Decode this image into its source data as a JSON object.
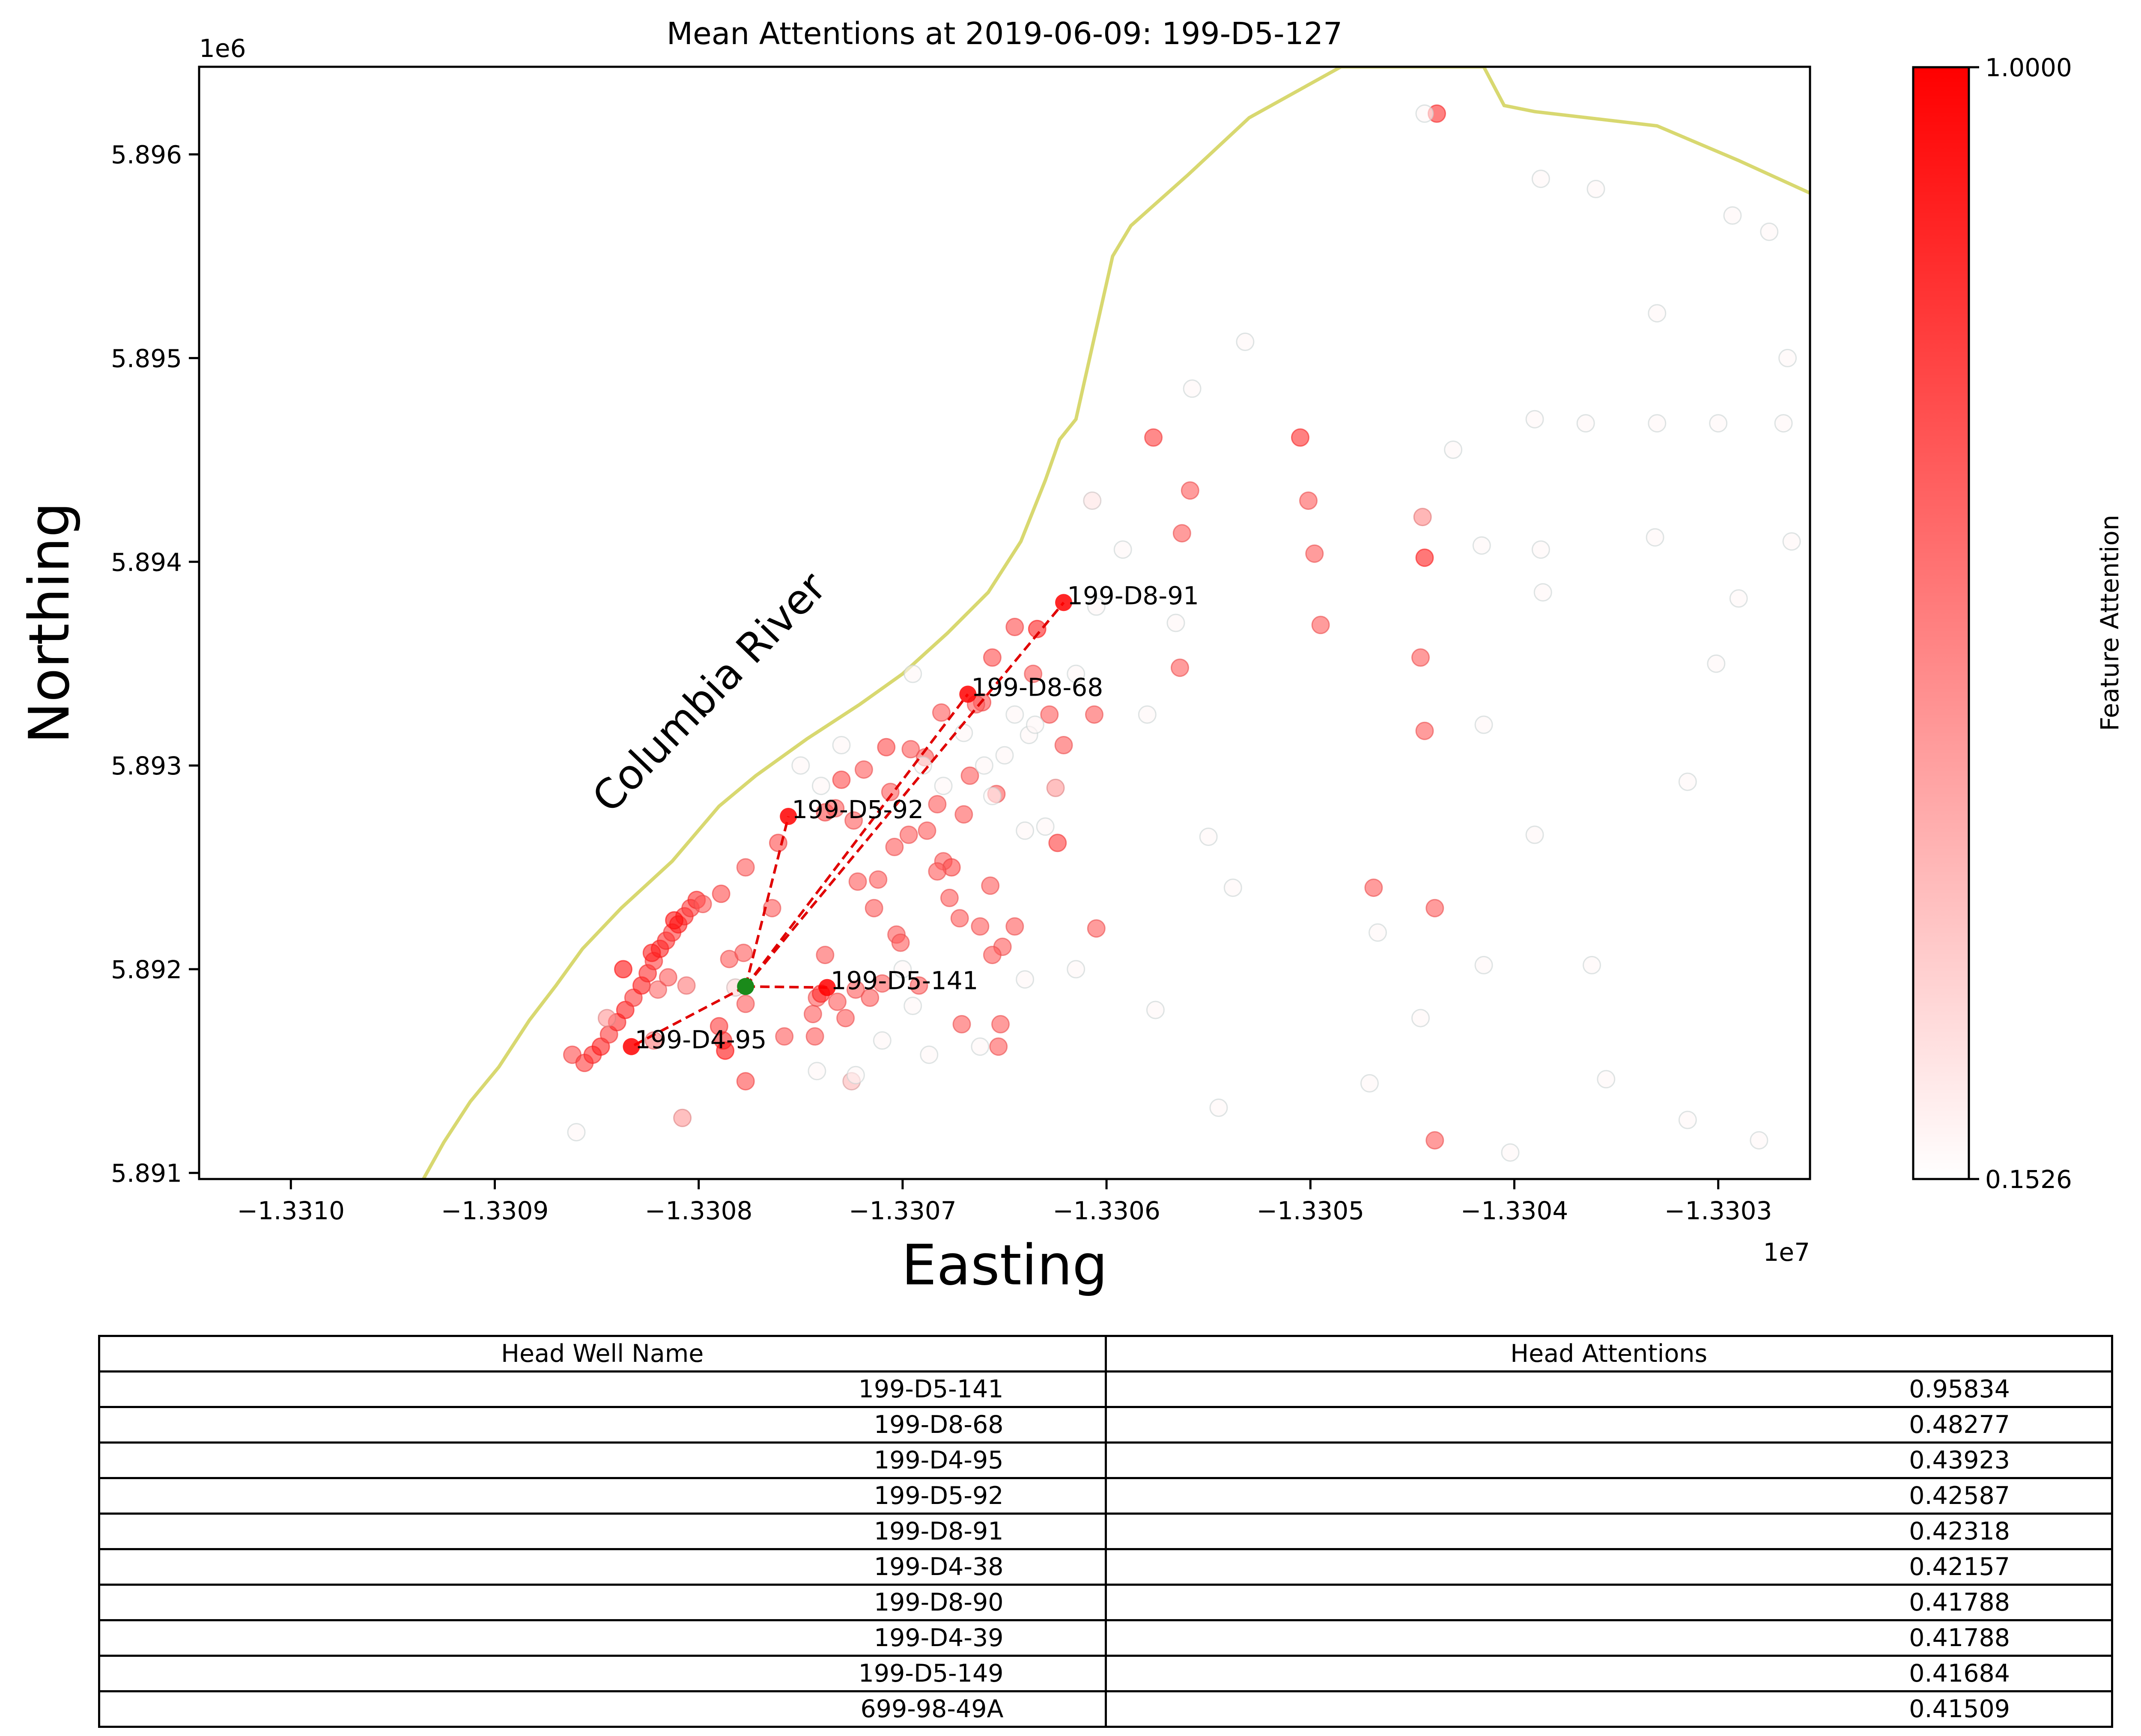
{
  "chart_data": {
    "type": "scatter",
    "title": "Mean Attentions at 2019-06-09: 199-D5-127",
    "xlabel": "Easting",
    "ylabel": "Northing",
    "x_offset_label": "1e7",
    "y_offset_label": "1e6",
    "xlim": [
      -13310450,
      -13302550
    ],
    "ylim": [
      5.89097,
      5.89643
    ],
    "xticks": [
      {
        "value": -13310000,
        "label": "−1.3310"
      },
      {
        "value": -13309000,
        "label": "−1.3309"
      },
      {
        "value": -13308000,
        "label": "−1.3308"
      },
      {
        "value": -13307000,
        "label": "−1.3307"
      },
      {
        "value": -13306000,
        "label": "−1.3306"
      },
      {
        "value": -13305000,
        "label": "−1.3305"
      },
      {
        "value": -13304000,
        "label": "−1.3304"
      },
      {
        "value": -13303000,
        "label": "−1.3303"
      }
    ],
    "yticks": [
      {
        "value": 5.891,
        "label": "5.891"
      },
      {
        "value": 5.892,
        "label": "5.892"
      },
      {
        "value": 5.893,
        "label": "5.893"
      },
      {
        "value": 5.894,
        "label": "5.894"
      },
      {
        "value": 5.895,
        "label": "5.895"
      },
      {
        "value": 5.896,
        "label": "5.896"
      }
    ],
    "river": {
      "label": "Columbia River",
      "color": "#d8d870",
      "points": [
        [
          -13309350,
          5.89097
        ],
        [
          -13309250,
          5.89115
        ],
        [
          -13309120,
          5.89135
        ],
        [
          -13308980,
          5.89152
        ],
        [
          -13308830,
          5.89175
        ],
        [
          -13308700,
          5.89192
        ],
        [
          -13308570,
          5.8921
        ],
        [
          -13308380,
          5.8923
        ],
        [
          -13308130,
          5.89253
        ],
        [
          -13307900,
          5.8928
        ],
        [
          -13307720,
          5.89295
        ],
        [
          -13307470,
          5.89313
        ],
        [
          -13307210,
          5.8933
        ],
        [
          -13307000,
          5.89345
        ],
        [
          -13306780,
          5.89365
        ],
        [
          -13306580,
          5.89385
        ],
        [
          -13306420,
          5.8941
        ],
        [
          -13306300,
          5.8944
        ],
        [
          -13306230,
          5.8946
        ],
        [
          -13306150,
          5.8947
        ],
        [
          -13306060,
          5.8951
        ],
        [
          -13305970,
          5.8955
        ],
        [
          -13305880,
          5.89565
        ],
        [
          -13305600,
          5.8959
        ],
        [
          -13305300,
          5.89618
        ],
        [
          -13304850,
          5.89643
        ],
        [
          -13304150,
          5.89643
        ],
        [
          -13304050,
          5.89624
        ],
        [
          -13303900,
          5.89621
        ],
        [
          -13303300,
          5.89614
        ],
        [
          -13302900,
          5.89597
        ],
        [
          -13302550,
          5.89581
        ]
      ]
    },
    "head_well": {
      "name": "199-D5-127",
      "x": -13307770,
      "y": 5.891915,
      "color": "#1a8a1a"
    },
    "attention_links": [
      {
        "name": "199-D5-141",
        "x": -13307370,
        "y": 5.89191
      },
      {
        "name": "199-D8-68",
        "x": -13306680,
        "y": 5.89335
      },
      {
        "name": "199-D4-95",
        "x": -13308330,
        "y": 5.89162
      },
      {
        "name": "199-D5-92",
        "x": -13307560,
        "y": 5.89275
      },
      {
        "name": "199-D8-91",
        "x": -13306210,
        "y": 5.8938
      }
    ],
    "wells": [
      {
        "x": -13308620,
        "y": 5.89158,
        "v": 0.75
      },
      {
        "x": -13308560,
        "y": 5.89154,
        "v": 0.8
      },
      {
        "x": -13308520,
        "y": 5.89158,
        "v": 0.85
      },
      {
        "x": -13308480,
        "y": 5.89162,
        "v": 0.9
      },
      {
        "x": -13308440,
        "y": 5.89168,
        "v": 0.8
      },
      {
        "x": -13308400,
        "y": 5.89174,
        "v": 0.85
      },
      {
        "x": -13308360,
        "y": 5.8918,
        "v": 0.9
      },
      {
        "x": -13308320,
        "y": 5.89186,
        "v": 0.8
      },
      {
        "x": -13308280,
        "y": 5.89192,
        "v": 0.9
      },
      {
        "x": -13308250,
        "y": 5.89198,
        "v": 0.85
      },
      {
        "x": -13308220,
        "y": 5.89204,
        "v": 0.8
      },
      {
        "x": -13308190,
        "y": 5.8921,
        "v": 0.9
      },
      {
        "x": -13308160,
        "y": 5.89214,
        "v": 0.85
      },
      {
        "x": -13308130,
        "y": 5.89218,
        "v": 0.8
      },
      {
        "x": -13308100,
        "y": 5.89222,
        "v": 0.9
      },
      {
        "x": -13308070,
        "y": 5.89226,
        "v": 0.85
      },
      {
        "x": -13308040,
        "y": 5.8923,
        "v": 0.8
      },
      {
        "x": -13308010,
        "y": 5.89234,
        "v": 0.85
      },
      {
        "x": -13307980,
        "y": 5.89232,
        "v": 0.7
      },
      {
        "x": -13308370,
        "y": 5.892,
        "v": 0.95
      },
      {
        "x": -13308230,
        "y": 5.89208,
        "v": 0.9
      },
      {
        "x": -13308120,
        "y": 5.89224,
        "v": 0.95
      },
      {
        "x": -13308200,
        "y": 5.8919,
        "v": 0.65
      },
      {
        "x": -13308150,
        "y": 5.89196,
        "v": 0.7
      },
      {
        "x": -13308060,
        "y": 5.89192,
        "v": 0.6
      },
      {
        "x": -13308450,
        "y": 5.89176,
        "v": 0.5
      },
      {
        "x": -13307890,
        "y": 5.89237,
        "v": 0.75
      },
      {
        "x": -13307850,
        "y": 5.89205,
        "v": 0.7
      },
      {
        "x": -13307900,
        "y": 5.89172,
        "v": 0.8
      },
      {
        "x": -13307880,
        "y": 5.89165,
        "v": 0.85
      },
      {
        "x": -13307870,
        "y": 5.8916,
        "v": 0.95
      },
      {
        "x": -13307770,
        "y": 5.89183,
        "v": 0.7
      },
      {
        "x": -13307770,
        "y": 5.89145,
        "v": 0.75
      },
      {
        "x": -13307780,
        "y": 5.89208,
        "v": 0.7
      },
      {
        "x": -13307770,
        "y": 5.8925,
        "v": 0.7
      },
      {
        "x": -13307640,
        "y": 5.8923,
        "v": 0.7
      },
      {
        "x": -13307610,
        "y": 5.89262,
        "v": 0.75
      },
      {
        "x": -13307820,
        "y": 5.89191,
        "v": 0.3
      },
      {
        "x": -13307380,
        "y": 5.89277,
        "v": 0.75
      },
      {
        "x": -13307300,
        "y": 5.89293,
        "v": 0.75
      },
      {
        "x": -13307190,
        "y": 5.89298,
        "v": 0.7
      },
      {
        "x": -13307080,
        "y": 5.89309,
        "v": 0.75
      },
      {
        "x": -13306960,
        "y": 5.89308,
        "v": 0.7
      },
      {
        "x": -13306890,
        "y": 5.89304,
        "v": 0.7
      },
      {
        "x": -13306810,
        "y": 5.89326,
        "v": 0.7
      },
      {
        "x": -13306560,
        "y": 5.89353,
        "v": 0.75
      },
      {
        "x": -13306450,
        "y": 5.89368,
        "v": 0.75
      },
      {
        "x": -13306340,
        "y": 5.89367,
        "v": 0.9
      },
      {
        "x": -13306610,
        "y": 5.89331,
        "v": 0.75
      },
      {
        "x": -13306640,
        "y": 5.8933,
        "v": 0.7
      },
      {
        "x": -13306360,
        "y": 5.89345,
        "v": 0.7
      },
      {
        "x": -13306280,
        "y": 5.89325,
        "v": 0.7
      },
      {
        "x": -13306060,
        "y": 5.89325,
        "v": 0.7
      },
      {
        "x": -13306210,
        "y": 5.8931,
        "v": 0.7
      },
      {
        "x": -13306250,
        "y": 5.89289,
        "v": 0.5
      },
      {
        "x": -13306240,
        "y": 5.89262,
        "v": 0.8
      },
      {
        "x": -13306050,
        "y": 5.8922,
        "v": 0.7
      },
      {
        "x": -13306540,
        "y": 5.89286,
        "v": 0.7
      },
      {
        "x": -13306670,
        "y": 5.89295,
        "v": 0.7
      },
      {
        "x": -13306700,
        "y": 5.89276,
        "v": 0.7
      },
      {
        "x": -13306830,
        "y": 5.89281,
        "v": 0.7
      },
      {
        "x": -13307060,
        "y": 5.89287,
        "v": 0.7
      },
      {
        "x": -13307240,
        "y": 5.89273,
        "v": 0.7
      },
      {
        "x": -13307330,
        "y": 5.89279,
        "v": 0.7
      },
      {
        "x": -13306880,
        "y": 5.89268,
        "v": 0.7
      },
      {
        "x": -13306970,
        "y": 5.89266,
        "v": 0.7
      },
      {
        "x": -13307040,
        "y": 5.8926,
        "v": 0.7
      },
      {
        "x": -13306800,
        "y": 5.89253,
        "v": 0.7
      },
      {
        "x": -13306760,
        "y": 5.8925,
        "v": 0.75
      },
      {
        "x": -13306830,
        "y": 5.89248,
        "v": 0.7
      },
      {
        "x": -13306570,
        "y": 5.89241,
        "v": 0.7
      },
      {
        "x": -13307220,
        "y": 5.89243,
        "v": 0.7
      },
      {
        "x": -13307140,
        "y": 5.8923,
        "v": 0.7
      },
      {
        "x": -13307120,
        "y": 5.89244,
        "v": 0.7
      },
      {
        "x": -13306770,
        "y": 5.89235,
        "v": 0.7
      },
      {
        "x": -13306720,
        "y": 5.89225,
        "v": 0.7
      },
      {
        "x": -13306620,
        "y": 5.89221,
        "v": 0.7
      },
      {
        "x": -13306510,
        "y": 5.89211,
        "v": 0.7
      },
      {
        "x": -13306450,
        "y": 5.89221,
        "v": 0.7
      },
      {
        "x": -13306560,
        "y": 5.89207,
        "v": 0.7
      },
      {
        "x": -13307030,
        "y": 5.89217,
        "v": 0.7
      },
      {
        "x": -13307010,
        "y": 5.89213,
        "v": 0.7
      },
      {
        "x": -13306920,
        "y": 5.89192,
        "v": 0.7
      },
      {
        "x": -13307380,
        "y": 5.89207,
        "v": 0.7
      },
      {
        "x": -13307420,
        "y": 5.89186,
        "v": 0.7
      },
      {
        "x": -13307440,
        "y": 5.89178,
        "v": 0.7
      },
      {
        "x": -13307430,
        "y": 5.89167,
        "v": 0.7
      },
      {
        "x": -13307320,
        "y": 5.89184,
        "v": 0.7
      },
      {
        "x": -13307230,
        "y": 5.8919,
        "v": 0.7
      },
      {
        "x": -13307160,
        "y": 5.89186,
        "v": 0.7
      },
      {
        "x": -13307100,
        "y": 5.89193,
        "v": 0.7
      },
      {
        "x": -13307280,
        "y": 5.89176,
        "v": 0.7
      },
      {
        "x": -13307400,
        "y": 5.89188,
        "v": 0.85
      },
      {
        "x": -13307580,
        "y": 5.89167,
        "v": 0.7
      },
      {
        "x": -13306710,
        "y": 5.89173,
        "v": 0.7
      },
      {
        "x": -13306520,
        "y": 5.89173,
        "v": 0.7
      },
      {
        "x": -13306530,
        "y": 5.89162,
        "v": 0.7
      },
      {
        "x": -13307250,
        "y": 5.89145,
        "v": 0.4
      },
      {
        "x": -13308080,
        "y": 5.89127,
        "v": 0.5
      },
      {
        "x": -13308220,
        "y": 5.89165,
        "v": 0.6
      },
      {
        "x": -13305770,
        "y": 5.89461,
        "v": 0.8
      },
      {
        "x": -13305590,
        "y": 5.89435,
        "v": 0.7
      },
      {
        "x": -13305630,
        "y": 5.89414,
        "v": 0.7
      },
      {
        "x": -13305640,
        "y": 5.89348,
        "v": 0.7
      },
      {
        "x": -13305050,
        "y": 5.89461,
        "v": 0.85
      },
      {
        "x": -13305010,
        "y": 5.8943,
        "v": 0.7
      },
      {
        "x": -13304980,
        "y": 5.89404,
        "v": 0.7
      },
      {
        "x": -13304950,
        "y": 5.89369,
        "v": 0.7
      },
      {
        "x": -13304450,
        "y": 5.89422,
        "v": 0.55
      },
      {
        "x": -13304440,
        "y": 5.89402,
        "v": 0.9
      },
      {
        "x": -13304460,
        "y": 5.89353,
        "v": 0.7
      },
      {
        "x": -13304440,
        "y": 5.89317,
        "v": 0.7
      },
      {
        "x": -13304690,
        "y": 5.8924,
        "v": 0.7
      },
      {
        "x": -13304390,
        "y": 5.8923,
        "v": 0.7
      },
      {
        "x": -13304390,
        "y": 5.89116,
        "v": 0.7
      },
      {
        "x": -13304380,
        "y": 5.8962,
        "v": 0.85
      },
      {
        "x": -13306070,
        "y": 5.8943,
        "v": 0.25
      },
      {
        "x": -13305580,
        "y": 5.89485,
        "v": 0.18
      },
      {
        "x": -13305320,
        "y": 5.89508,
        "v": 0.18
      },
      {
        "x": -13304440,
        "y": 5.8962,
        "v": 0.18
      },
      {
        "x": -13303870,
        "y": 5.89588,
        "v": 0.18
      },
      {
        "x": -13303600,
        "y": 5.89583,
        "v": 0.18
      },
      {
        "x": -13303300,
        "y": 5.89522,
        "v": 0.18
      },
      {
        "x": -13302930,
        "y": 5.8957,
        "v": 0.18
      },
      {
        "x": -13302750,
        "y": 5.89562,
        "v": 0.18
      },
      {
        "x": -13302660,
        "y": 5.895,
        "v": 0.18
      },
      {
        "x": -13303900,
        "y": 5.8947,
        "v": 0.18
      },
      {
        "x": -13303650,
        "y": 5.89468,
        "v": 0.18
      },
      {
        "x": -13303300,
        "y": 5.89468,
        "v": 0.18
      },
      {
        "x": -13303000,
        "y": 5.89468,
        "v": 0.18
      },
      {
        "x": -13302680,
        "y": 5.89468,
        "v": 0.18
      },
      {
        "x": -13304160,
        "y": 5.89408,
        "v": 0.18
      },
      {
        "x": -13303870,
        "y": 5.89406,
        "v": 0.18
      },
      {
        "x": -13303310,
        "y": 5.89412,
        "v": 0.18
      },
      {
        "x": -13302640,
        "y": 5.8941,
        "v": 0.18
      },
      {
        "x": -13304300,
        "y": 5.89455,
        "v": 0.18
      },
      {
        "x": -13303860,
        "y": 5.89385,
        "v": 0.18
      },
      {
        "x": -13302900,
        "y": 5.89382,
        "v": 0.18
      },
      {
        "x": -13303010,
        "y": 5.8935,
        "v": 0.18
      },
      {
        "x": -13304150,
        "y": 5.8932,
        "v": 0.18
      },
      {
        "x": -13303150,
        "y": 5.89292,
        "v": 0.18
      },
      {
        "x": -13303900,
        "y": 5.89266,
        "v": 0.18
      },
      {
        "x": -13304670,
        "y": 5.89218,
        "v": 0.18
      },
      {
        "x": -13304150,
        "y": 5.89202,
        "v": 0.18
      },
      {
        "x": -13304460,
        "y": 5.89176,
        "v": 0.18
      },
      {
        "x": -13303620,
        "y": 5.89202,
        "v": 0.18
      },
      {
        "x": -13303550,
        "y": 5.89146,
        "v": 0.18
      },
      {
        "x": -13303150,
        "y": 5.89126,
        "v": 0.18
      },
      {
        "x": -13302800,
        "y": 5.89116,
        "v": 0.18
      },
      {
        "x": -13304020,
        "y": 5.8911,
        "v": 0.18
      },
      {
        "x": -13304710,
        "y": 5.89144,
        "v": 0.18
      },
      {
        "x": -13305450,
        "y": 5.89132,
        "v": 0.18
      },
      {
        "x": -13305760,
        "y": 5.8918,
        "v": 0.18
      },
      {
        "x": -13305380,
        "y": 5.8924,
        "v": 0.18
      },
      {
        "x": -13305500,
        "y": 5.89265,
        "v": 0.18
      },
      {
        "x": -13305800,
        "y": 5.89325,
        "v": 0.18
      },
      {
        "x": -13305660,
        "y": 5.8937,
        "v": 0.18
      },
      {
        "x": -13306050,
        "y": 5.89378,
        "v": 0.18
      },
      {
        "x": -13305920,
        "y": 5.89406,
        "v": 0.18
      },
      {
        "x": -13306150,
        "y": 5.892,
        "v": 0.18
      },
      {
        "x": -13306400,
        "y": 5.89195,
        "v": 0.18
      },
      {
        "x": -13306620,
        "y": 5.89162,
        "v": 0.18
      },
      {
        "x": -13306870,
        "y": 5.89158,
        "v": 0.18
      },
      {
        "x": -13306950,
        "y": 5.89182,
        "v": 0.18
      },
      {
        "x": -13307100,
        "y": 5.89165,
        "v": 0.18
      },
      {
        "x": -13307230,
        "y": 5.89148,
        "v": 0.18
      },
      {
        "x": -13307420,
        "y": 5.8915,
        "v": 0.18
      },
      {
        "x": -13307000,
        "y": 5.892,
        "v": 0.18
      },
      {
        "x": -13306400,
        "y": 5.89268,
        "v": 0.18
      },
      {
        "x": -13306300,
        "y": 5.8927,
        "v": 0.18
      },
      {
        "x": -13306600,
        "y": 5.893,
        "v": 0.18
      },
      {
        "x": -13306500,
        "y": 5.89305,
        "v": 0.18
      },
      {
        "x": -13306380,
        "y": 5.89315,
        "v": 0.18
      },
      {
        "x": -13306450,
        "y": 5.89325,
        "v": 0.18
      },
      {
        "x": -13306350,
        "y": 5.8932,
        "v": 0.18
      },
      {
        "x": -13306700,
        "y": 5.89316,
        "v": 0.18
      },
      {
        "x": -13306900,
        "y": 5.893,
        "v": 0.18
      },
      {
        "x": -13306800,
        "y": 5.8929,
        "v": 0.18
      },
      {
        "x": -13307400,
        "y": 5.8929,
        "v": 0.18
      },
      {
        "x": -13307500,
        "y": 5.893,
        "v": 0.18
      },
      {
        "x": -13306560,
        "y": 5.89285,
        "v": 0.18
      },
      {
        "x": -13306950,
        "y": 5.89345,
        "v": 0.18
      },
      {
        "x": -13308600,
        "y": 5.8912,
        "v": 0.18
      },
      {
        "x": -13307300,
        "y": 5.8931,
        "v": 0.18
      },
      {
        "x": -13306150,
        "y": 5.89345,
        "v": 0.18
      }
    ]
  },
  "colorbar": {
    "label": "Feature Attention",
    "max_label": "1.0000",
    "min_label": "0.1526",
    "min_value": 0.1526,
    "max_value": 1.0,
    "low_color": "#ffffff",
    "high_color": "#ff0000"
  },
  "table": {
    "headers": [
      "Head Well Name",
      "Head Attentions"
    ],
    "rows": [
      [
        "199-D5-141",
        "0.95834"
      ],
      [
        "199-D8-68",
        "0.48277"
      ],
      [
        "199-D4-95",
        "0.43923"
      ],
      [
        "199-D5-92",
        "0.42587"
      ],
      [
        "199-D8-91",
        "0.42318"
      ],
      [
        "199-D4-38",
        "0.42157"
      ],
      [
        "199-D8-90",
        "0.41788"
      ],
      [
        "199-D4-39",
        "0.41788"
      ],
      [
        "199-D5-149",
        "0.41684"
      ],
      [
        "699-98-49A",
        "0.41509"
      ]
    ]
  }
}
